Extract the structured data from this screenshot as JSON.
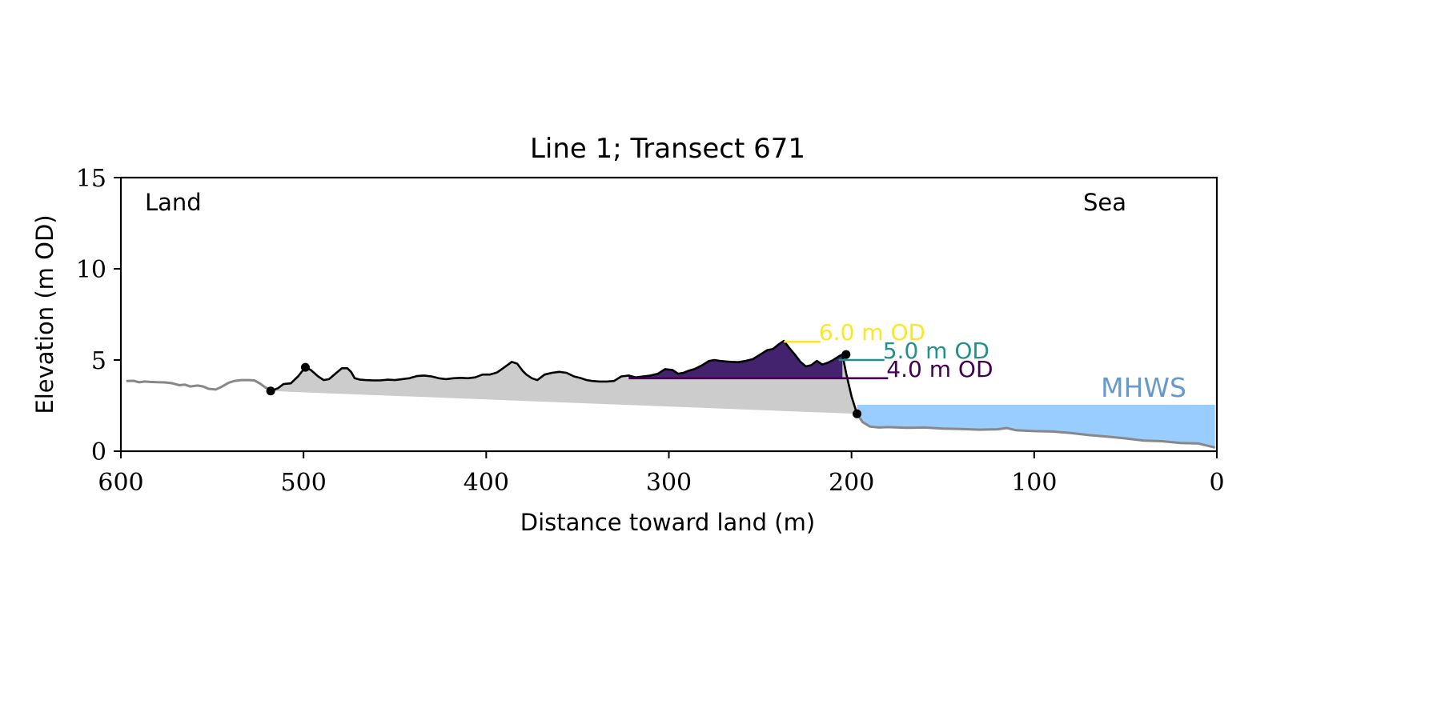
{
  "chart_data": {
    "type": "area",
    "title": "Line 1; Transect 671",
    "xlabel": "Distance toward land (m)",
    "ylabel": "Elevation (m OD)",
    "xlim": [
      600,
      0
    ],
    "ylim": [
      0,
      15
    ],
    "x_reversed": true,
    "grid": false,
    "xticks": [
      600,
      500,
      400,
      300,
      200,
      100,
      0
    ],
    "xtick_labels": [
      "600",
      "500",
      "400",
      "300",
      "200",
      "100",
      "0"
    ],
    "yticks": [
      0,
      5,
      10,
      15
    ],
    "ytick_labels": [
      "0",
      "5",
      "10",
      "15"
    ],
    "annotations": {
      "land": "Land",
      "sea": "Sea"
    },
    "mhws": {
      "label": "MHWS",
      "elevation": 2.55,
      "x_start": 197,
      "x_end": 1,
      "color": "#99ccff",
      "label_color": "#6699cc"
    },
    "profile_outer": {
      "color": "#888888",
      "x": [
        597,
        593,
        590,
        587,
        584,
        580,
        576,
        572,
        568,
        565,
        562,
        558,
        555,
        552,
        548,
        545,
        541,
        538,
        534,
        530,
        527,
        524,
        521,
        518
      ],
      "y": [
        3.85,
        3.86,
        3.78,
        3.82,
        3.8,
        3.78,
        3.77,
        3.73,
        3.62,
        3.65,
        3.55,
        3.6,
        3.55,
        3.42,
        3.38,
        3.52,
        3.75,
        3.85,
        3.9,
        3.9,
        3.88,
        3.72,
        3.5,
        3.35
      ]
    },
    "profile_sea": {
      "color": "#888888",
      "x": [
        197,
        194,
        190,
        185,
        180,
        170,
        160,
        150,
        140,
        130,
        120,
        115,
        110,
        100,
        90,
        80,
        70,
        60,
        50,
        40,
        30,
        20,
        10,
        5,
        1
      ],
      "y": [
        2.05,
        1.6,
        1.35,
        1.3,
        1.32,
        1.28,
        1.3,
        1.24,
        1.22,
        1.18,
        1.2,
        1.27,
        1.15,
        1.1,
        1.08,
        1.0,
        0.88,
        0.8,
        0.7,
        0.58,
        0.55,
        0.45,
        0.42,
        0.3,
        0.2
      ]
    },
    "profile_dune": {
      "color": "#000000",
      "x": [
        518,
        514,
        511,
        507,
        503,
        499,
        496,
        492,
        489,
        486,
        482,
        479,
        476,
        474,
        472,
        469,
        466,
        462,
        458,
        454,
        450,
        446,
        442,
        438,
        434,
        430,
        426,
        422,
        418,
        414,
        410,
        406,
        402,
        398,
        394,
        390,
        386,
        383,
        380,
        378,
        375,
        372,
        368,
        364,
        360,
        356,
        352,
        348,
        345,
        342,
        338,
        334,
        330,
        326,
        322,
        318,
        314,
        310,
        306,
        302,
        298,
        295,
        292,
        289,
        286,
        282,
        278,
        275,
        272,
        269,
        266,
        262,
        258,
        254,
        250,
        246,
        243,
        240,
        237,
        234,
        231,
        228,
        225,
        222,
        219,
        216,
        213,
        210,
        207,
        205,
        203,
        200,
        197
      ],
      "y": [
        3.3,
        3.45,
        3.68,
        3.72,
        4.1,
        4.6,
        4.45,
        4.1,
        3.9,
        3.95,
        4.3,
        4.55,
        4.55,
        4.35,
        4.0,
        3.92,
        3.9,
        3.88,
        3.88,
        3.92,
        3.9,
        3.95,
        4.0,
        4.12,
        4.15,
        4.1,
        4.0,
        3.95,
        4.0,
        4.02,
        4.0,
        4.05,
        4.2,
        4.2,
        4.32,
        4.6,
        4.9,
        4.8,
        4.4,
        4.2,
        4.0,
        3.9,
        4.2,
        4.3,
        4.35,
        4.3,
        4.1,
        4.0,
        3.9,
        3.85,
        3.82,
        3.82,
        3.85,
        4.1,
        4.15,
        4.05,
        4.1,
        4.15,
        4.25,
        4.5,
        4.45,
        4.25,
        4.3,
        4.42,
        4.5,
        4.7,
        4.95,
        5.0,
        4.95,
        4.92,
        4.9,
        4.88,
        4.95,
        5.05,
        5.3,
        5.55,
        5.6,
        5.85,
        6.05,
        5.65,
        5.3,
        4.9,
        4.65,
        4.72,
        4.95,
        4.75,
        4.85,
        5.0,
        5.2,
        5.3,
        4.3,
        3.0,
        2.05
      ]
    },
    "toe_line": {
      "x": [
        518,
        197
      ],
      "y": [
        3.3,
        2.05
      ],
      "fill_color": "#cccccc"
    },
    "key_points": [
      {
        "x": 518,
        "y": 3.3
      },
      {
        "x": 499,
        "y": 4.6
      },
      {
        "x": 203,
        "y": 5.3
      },
      {
        "x": 197,
        "y": 2.05
      }
    ],
    "volume_fill": {
      "above_elevation": 4.0,
      "x_from": 322,
      "x_to": 205,
      "color": "#44236e"
    },
    "od_levels": [
      {
        "label": "6.0 m OD",
        "elevation": 6.0,
        "x_start": 237,
        "x_end": 217,
        "color": "#fde725"
      },
      {
        "label": "5.0 m OD",
        "elevation": 5.0,
        "x_start": 207,
        "x_end": 182,
        "color": "#21918c"
      },
      {
        "label": "4.0 m OD",
        "elevation": 4.0,
        "x_start": 322,
        "x_end": 180,
        "color": "#440154"
      }
    ]
  }
}
